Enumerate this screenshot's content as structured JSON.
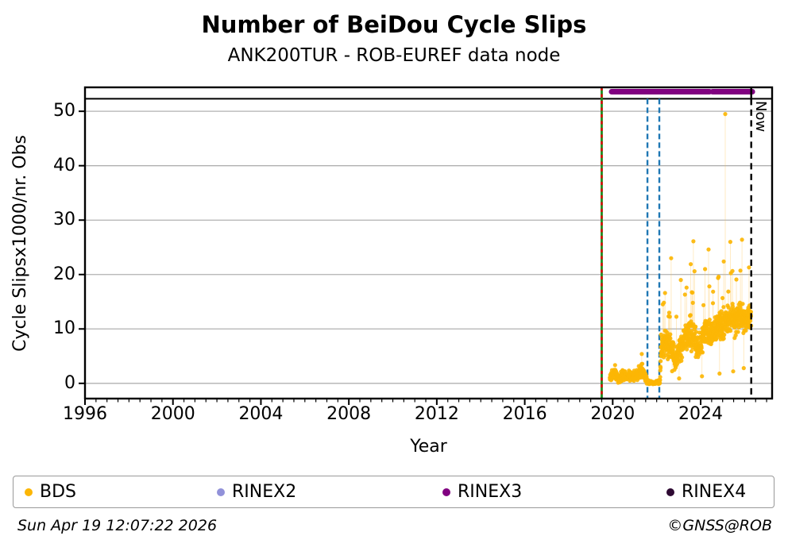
{
  "header": {
    "title": "Number of BeiDou Cycle Slips",
    "subtitle": "ANK200TUR - ROB-EUREF data node"
  },
  "footer": {
    "timestamp": "Sun Apr 19 12:07:22 2026",
    "credit": "©GNSS@ROB"
  },
  "legend": {
    "items": [
      {
        "label": "BDS",
        "color": "#fcb605"
      },
      {
        "label": "RINEX2",
        "color": "#9191d9"
      },
      {
        "label": "RINEX3",
        "color": "#800080"
      },
      {
        "label": "RINEX4",
        "color": "#2e0a33"
      }
    ]
  },
  "chart_data": {
    "type": "scatter",
    "title": "Number of BeiDou Cycle Slips",
    "subtitle": "ANK200TUR - ROB-EUREF data node",
    "xlabel": "Year",
    "ylabel": "Cycle Slipsx1000/nr. Obs",
    "xlim": [
      1996,
      2027.25
    ],
    "ylim": [
      -2.8,
      54.4
    ],
    "x_major_ticks": [
      1996,
      2000,
      2004,
      2008,
      2012,
      2016,
      2020,
      2024
    ],
    "x_minor_step": 0.5,
    "y_ticks": [
      0,
      10,
      20,
      30,
      40,
      50
    ],
    "grid": "horizontal-gray",
    "grid_color": "#b0b0b0",
    "annotations": {
      "separator_line": {
        "y": 52.3,
        "color": "#000000"
      },
      "availability_bars": [
        {
          "name": "RINEX3",
          "color": "#800080",
          "y": 53.6,
          "segments": [
            [
              2019.95,
              2024.4
            ],
            [
              2024.54,
              2026.35
            ]
          ]
        }
      ],
      "vertical_lines": [
        {
          "x": 2019.5,
          "style": "solid",
          "color": "#1e8c1e",
          "span": "full",
          "name": "receiver-event-green"
        },
        {
          "x": 2019.5,
          "style": "dashed",
          "color": "#e60000",
          "span": "full",
          "name": "receiver-event-red"
        },
        {
          "x": 2021.58,
          "style": "dashed",
          "color": "#1f77b4",
          "span": "below",
          "name": "data-event-blue-1"
        },
        {
          "x": 2022.12,
          "style": "dashed",
          "color": "#1f77b4",
          "span": "below",
          "name": "data-event-blue-2"
        },
        {
          "x": 2026.3,
          "style": "dashed",
          "color": "#000000",
          "span": "below",
          "name": "now-line",
          "label": "Now"
        }
      ],
      "now_label": "Now"
    },
    "series": [
      {
        "name": "BDS",
        "color": "#fcb605",
        "line_color": "rgba(255,196,80,0.40)",
        "marker_radius": 2.6,
        "description": "Daily BeiDou cycle-slip ratio; no data before 2019.87; low values 0-4 until 2021.6; near zero 2021.65-2022.15; jump to 5-15 band rising toward 2026 with outliers to ~26 and one spike at 49.5 in early 2025.",
        "generation": {
          "seed": 20260419,
          "start": 2019.87,
          "end": 2026.3,
          "step_years": 0.0055,
          "low_period_end": 2022.17,
          "min_low": -0.45,
          "min_high": 1.0,
          "burst_prob": 0.025,
          "keypoints": [
            [
              2019.87,
              0.9,
              0.8
            ],
            [
              2020.0,
              1.6,
              1.2
            ],
            [
              2020.12,
              2.0,
              1.4
            ],
            [
              2020.22,
              0.9,
              0.8
            ],
            [
              2020.35,
              1.1,
              0.9
            ],
            [
              2020.5,
              1.6,
              1.1
            ],
            [
              2020.62,
              1.0,
              0.8
            ],
            [
              2020.75,
              1.5,
              1.1
            ],
            [
              2020.9,
              1.1,
              0.9
            ],
            [
              2021.05,
              1.4,
              1.1
            ],
            [
              2021.2,
              2.0,
              1.4
            ],
            [
              2021.33,
              2.3,
              1.5
            ],
            [
              2021.45,
              1.4,
              1.1
            ],
            [
              2021.55,
              0.6,
              0.7
            ],
            [
              2021.65,
              0.15,
              0.35
            ],
            [
              2021.9,
              0.1,
              0.3
            ],
            [
              2022.08,
              0.25,
              0.45
            ],
            [
              2022.15,
              0.4,
              0.6
            ],
            [
              2022.2,
              6.5,
              2.6
            ],
            [
              2022.4,
              7.6,
              3.0
            ],
            [
              2022.55,
              7.0,
              3.0
            ],
            [
              2022.7,
              5.8,
              3.2
            ],
            [
              2022.85,
              4.6,
              2.4
            ],
            [
              2023.0,
              5.6,
              2.6
            ],
            [
              2023.15,
              7.6,
              3.0
            ],
            [
              2023.35,
              8.6,
              3.0
            ],
            [
              2023.55,
              9.2,
              3.4
            ],
            [
              2023.7,
              8.2,
              3.4
            ],
            [
              2023.88,
              6.0,
              2.8
            ],
            [
              2024.02,
              7.0,
              3.0
            ],
            [
              2024.18,
              9.6,
              3.0
            ],
            [
              2024.32,
              10.2,
              3.0
            ],
            [
              2024.48,
              8.6,
              3.0
            ],
            [
              2024.65,
              9.2,
              3.0
            ],
            [
              2024.82,
              10.6,
              3.0
            ],
            [
              2025.0,
              10.2,
              3.4
            ],
            [
              2025.18,
              11.6,
              3.0
            ],
            [
              2025.35,
              12.4,
              3.0
            ],
            [
              2025.55,
              11.4,
              3.4
            ],
            [
              2025.75,
              12.0,
              3.0
            ],
            [
              2025.95,
              11.6,
              3.0
            ],
            [
              2026.12,
              12.2,
              3.0
            ],
            [
              2026.3,
              12.6,
              3.4
            ]
          ]
        },
        "outliers": [
          [
            2021.32,
            5.4
          ],
          [
            2022.38,
            16.6
          ],
          [
            2022.66,
            23.0
          ],
          [
            2023.02,
            0.9
          ],
          [
            2023.1,
            19.0
          ],
          [
            2023.36,
            17.6
          ],
          [
            2023.55,
            21.9
          ],
          [
            2023.67,
            26.1
          ],
          [
            2023.72,
            20.6
          ],
          [
            2024.06,
            1.3
          ],
          [
            2024.2,
            21.0
          ],
          [
            2024.36,
            24.6
          ],
          [
            2024.82,
            19.6
          ],
          [
            2024.86,
            1.8
          ],
          [
            2025.05,
            22.4
          ],
          [
            2025.12,
            49.5
          ],
          [
            2025.35,
            26.0
          ],
          [
            2025.48,
            2.2
          ],
          [
            2025.88,
            26.4
          ],
          [
            2025.96,
            2.8
          ],
          [
            2026.2,
            21.3
          ]
        ]
      },
      {
        "name": "RINEX2",
        "color": "#9191d9",
        "points": []
      },
      {
        "name": "RINEX3",
        "color": "#800080",
        "points": "availability_bars"
      },
      {
        "name": "RINEX4",
        "color": "#2e0a33",
        "points": []
      }
    ],
    "legend_entries": [
      "BDS",
      "RINEX2",
      "RINEX3",
      "RINEX4"
    ],
    "legend_position": "bottom-outside"
  }
}
